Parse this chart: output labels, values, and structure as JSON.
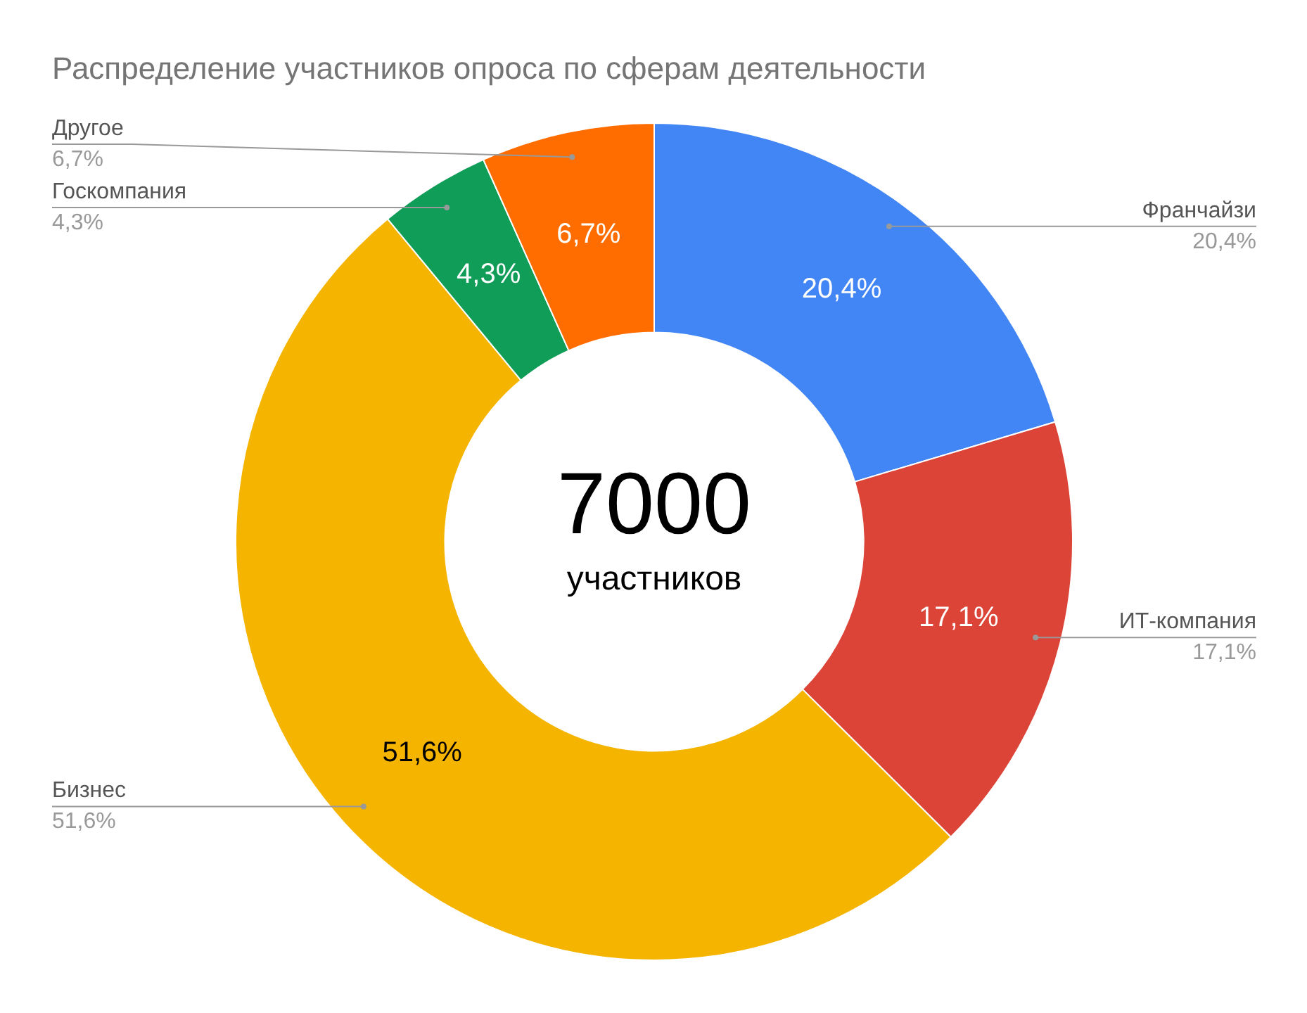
{
  "chart_data": {
    "type": "donut",
    "title": "Распределение участников опроса по сферам деятельности",
    "categories": [
      "Франчайзи",
      "ИТ-компания",
      "Бизнес",
      "Госкомпания",
      "Другое"
    ],
    "values": [
      20.4,
      17.1,
      51.6,
      4.3,
      6.7
    ],
    "value_labels": [
      "20,4%",
      "17,1%",
      "51,6%",
      "4,3%",
      "6,7%"
    ],
    "colors": [
      "#4285f4",
      "#db4437",
      "#f4b400",
      "#0f9d58",
      "#ff6d00"
    ],
    "annotations": [
      "7000",
      "участников"
    ],
    "legend": false
  }
}
